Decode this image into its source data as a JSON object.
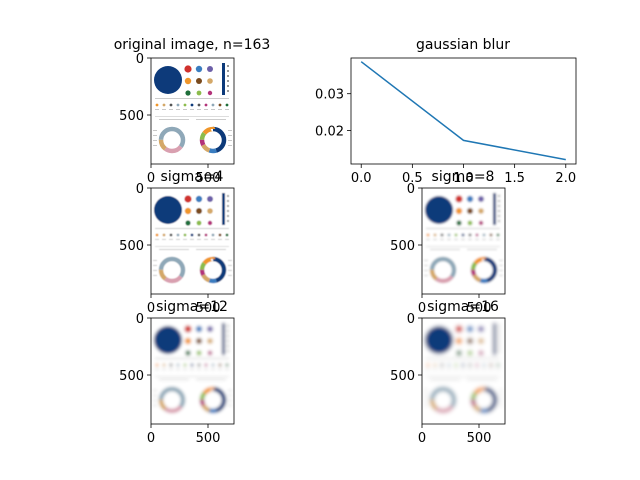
{
  "chart_data": [
    {
      "type": "image",
      "title": "original image, n=163",
      "xticks": [
        "0",
        "500"
      ],
      "yticks": [
        "0",
        "500"
      ],
      "sigma": 0
    },
    {
      "type": "line",
      "title": "gaussian blur",
      "x": [
        0.0,
        1.0,
        2.0
      ],
      "y": [
        0.0387,
        0.0173,
        0.0121
      ],
      "xlim": [
        -0.1,
        2.1
      ],
      "ylim": [
        0.0109,
        0.0397
      ],
      "xticks": [
        "0.0",
        "0.5",
        "1.0",
        "1.5",
        "2.0"
      ],
      "xtick_values": [
        0,
        0.5,
        1.0,
        1.5,
        2.0
      ],
      "yticks": [
        "0.02",
        "0.03"
      ],
      "ytick_values": [
        0.02,
        0.03
      ],
      "color": "#1f77b4"
    },
    {
      "type": "image",
      "title": "sigma=4",
      "xticks": [
        "0",
        "500"
      ],
      "yticks": [
        "0",
        "500"
      ],
      "sigma": 4
    },
    {
      "type": "image",
      "title": "sigma=8",
      "xticks": [
        "0",
        "500"
      ],
      "yticks": [
        "0",
        "500"
      ],
      "sigma": 8
    },
    {
      "type": "image",
      "title": "sigma=12",
      "xticks": [
        "0",
        "500"
      ],
      "yticks": [
        "0",
        "500"
      ],
      "sigma": 12
    },
    {
      "type": "image",
      "title": "sigma=16",
      "xticks": [
        "0",
        "500"
      ],
      "yticks": [
        "0",
        "500"
      ],
      "sigma": 16
    }
  ],
  "colors": {
    "navy": "#0d3a7a",
    "red": "#d0312d",
    "blue": "#3a7dc0",
    "purple": "#6c5fa8",
    "orange": "#f0962a",
    "brown": "#7a4a1e",
    "tan": "#d4a868",
    "green": "#1e6e3a",
    "lightgreen": "#8cbc4c",
    "magenta": "#b3337a",
    "slate": "#8fa8b8",
    "pink": "#d9a0b0",
    "line": "#1f77b4"
  }
}
